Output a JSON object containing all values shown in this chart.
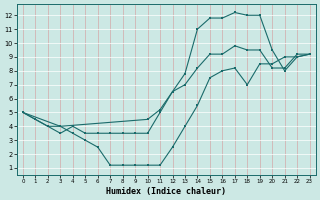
{
  "xlabel": "Humidex (Indice chaleur)",
  "bg_color": "#cce8e4",
  "line_color": "#1a6b6b",
  "grid_color": "#b8d8d4",
  "xlim_min": -0.5,
  "xlim_max": 23.5,
  "ylim_min": 0.5,
  "ylim_max": 12.8,
  "xticks": [
    0,
    1,
    2,
    3,
    4,
    5,
    6,
    7,
    8,
    9,
    10,
    11,
    12,
    13,
    14,
    15,
    16,
    17,
    18,
    19,
    20,
    21,
    22,
    23
  ],
  "yticks": [
    1,
    2,
    3,
    4,
    5,
    6,
    7,
    8,
    9,
    10,
    11,
    12
  ],
  "line1_x": [
    0,
    1,
    2,
    3,
    4,
    5,
    6,
    7,
    8,
    9,
    10,
    11,
    12,
    13,
    14,
    15,
    16,
    17,
    18,
    19,
    20,
    21,
    22,
    23
  ],
  "line1_y": [
    5.0,
    4.5,
    4.0,
    4.0,
    3.5,
    3.0,
    2.5,
    1.2,
    1.2,
    1.2,
    1.2,
    1.2,
    2.5,
    4.0,
    5.5,
    7.5,
    8.0,
    8.2,
    7.0,
    8.5,
    8.5,
    9.0,
    9.0,
    9.2
  ],
  "line2_x": [
    0,
    1,
    2,
    3,
    4,
    5,
    6,
    7,
    8,
    9,
    10,
    11,
    12,
    13,
    14,
    15,
    16,
    17,
    18,
    19,
    20,
    21,
    22,
    23
  ],
  "line2_y": [
    5.0,
    4.5,
    4.0,
    3.5,
    4.0,
    3.5,
    3.5,
    3.5,
    3.5,
    3.5,
    3.5,
    5.0,
    6.5,
    7.8,
    11.0,
    11.8,
    11.8,
    12.2,
    12.0,
    12.0,
    9.5,
    8.0,
    9.0,
    9.2
  ],
  "line3_x": [
    0,
    3,
    10,
    11,
    12,
    13,
    14,
    15,
    16,
    17,
    18,
    19,
    20,
    21,
    22,
    23
  ],
  "line3_y": [
    5.0,
    4.0,
    4.5,
    5.2,
    6.5,
    7.0,
    8.2,
    9.2,
    9.2,
    9.8,
    9.5,
    9.5,
    8.2,
    8.2,
    9.2,
    9.2
  ]
}
